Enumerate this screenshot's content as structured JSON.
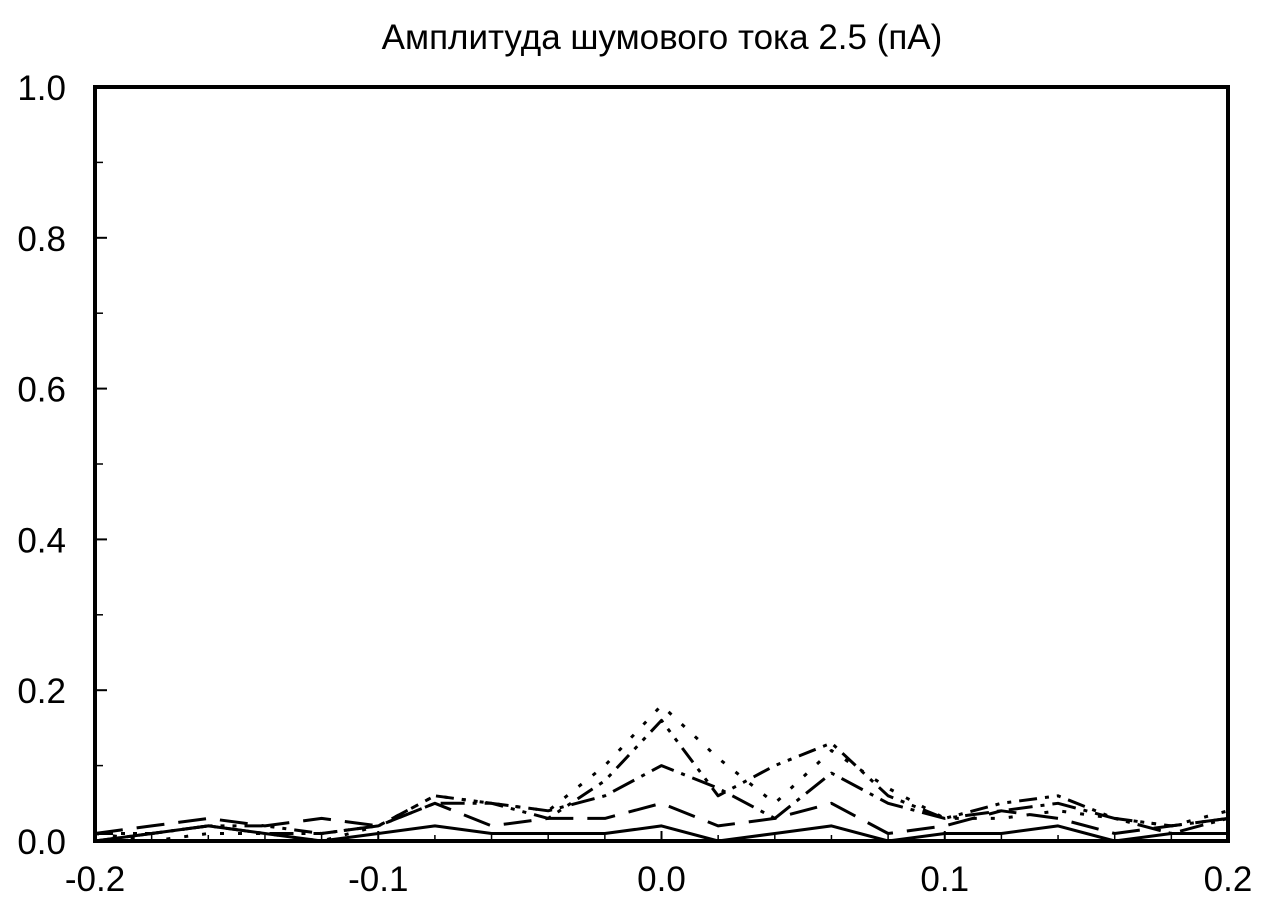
{
  "chart_data": {
    "type": "line",
    "title": "Амплитуда шумового тока 2.5 (пА)",
    "xlabel": "",
    "ylabel": "",
    "xlim": [
      -0.2,
      0.2
    ],
    "ylim": [
      0.0,
      1.0
    ],
    "x_ticks": [
      "-0.2",
      "-0.1",
      "0.0",
      "0.1",
      "0.2"
    ],
    "y_ticks": [
      "0.0",
      "0.2",
      "0.4",
      "0.6",
      "0.8",
      "1.0"
    ],
    "grid": false,
    "legend": "none",
    "series": [
      {
        "style": "solid",
        "x": [
          -0.2,
          -0.18,
          -0.16,
          -0.14,
          -0.12,
          -0.1,
          -0.08,
          -0.06,
          -0.04,
          -0.02,
          0.0,
          0.02,
          0.04,
          0.06,
          0.08,
          0.1,
          0.12,
          0.14,
          0.16,
          0.18,
          0.2
        ],
        "y": [
          0.0,
          0.01,
          0.02,
          0.01,
          0.0,
          0.01,
          0.02,
          0.01,
          0.01,
          0.01,
          0.02,
          0.0,
          0.01,
          0.02,
          0.0,
          0.01,
          0.01,
          0.02,
          0.0,
          0.01,
          0.01
        ]
      },
      {
        "style": "long-dash",
        "x": [
          -0.2,
          -0.18,
          -0.16,
          -0.14,
          -0.12,
          -0.1,
          -0.08,
          -0.06,
          -0.04,
          -0.02,
          0.0,
          0.02,
          0.04,
          0.06,
          0.08,
          0.1,
          0.12,
          0.14,
          0.16,
          0.18,
          0.2
        ],
        "y": [
          0.01,
          0.02,
          0.03,
          0.02,
          0.03,
          0.02,
          0.05,
          0.02,
          0.03,
          0.03,
          0.05,
          0.02,
          0.03,
          0.05,
          0.01,
          0.02,
          0.04,
          0.03,
          0.01,
          0.02,
          0.03
        ]
      },
      {
        "style": "dash-dot",
        "x": [
          -0.2,
          -0.18,
          -0.16,
          -0.14,
          -0.12,
          -0.1,
          -0.08,
          -0.06,
          -0.04,
          -0.02,
          0.0,
          0.02,
          0.04,
          0.06,
          0.08,
          0.1,
          0.12,
          0.14,
          0.16,
          0.18,
          0.2
        ],
        "y": [
          0.0,
          0.01,
          0.02,
          0.01,
          0.01,
          0.02,
          0.05,
          0.05,
          0.04,
          0.06,
          0.1,
          0.07,
          0.03,
          0.09,
          0.05,
          0.03,
          0.04,
          0.05,
          0.03,
          0.01,
          0.03
        ]
      },
      {
        "style": "dash-dot-dot",
        "x": [
          -0.2,
          -0.18,
          -0.16,
          -0.14,
          -0.12,
          -0.1,
          -0.08,
          -0.06,
          -0.04,
          -0.02,
          0.0,
          0.02,
          0.04,
          0.06,
          0.08,
          0.1,
          0.12,
          0.14,
          0.16,
          0.18,
          0.2
        ],
        "y": [
          0.01,
          0.01,
          0.02,
          0.02,
          0.01,
          0.02,
          0.06,
          0.05,
          0.03,
          0.08,
          0.16,
          0.06,
          0.1,
          0.13,
          0.06,
          0.03,
          0.05,
          0.06,
          0.03,
          0.02,
          0.03
        ]
      },
      {
        "style": "dotted",
        "x": [
          -0.2,
          -0.18,
          -0.16,
          -0.14,
          -0.12,
          -0.1,
          -0.08,
          -0.06,
          -0.04,
          -0.02,
          0.0,
          0.02,
          0.04,
          0.06,
          0.08,
          0.1,
          0.12,
          0.14,
          0.16,
          0.18,
          0.2
        ],
        "y": [
          0.01,
          0.0,
          0.01,
          0.01,
          0.0,
          0.02,
          0.06,
          0.05,
          0.04,
          0.1,
          0.18,
          0.11,
          0.05,
          0.12,
          0.07,
          0.03,
          0.03,
          0.04,
          0.03,
          0.02,
          0.04
        ]
      }
    ]
  }
}
